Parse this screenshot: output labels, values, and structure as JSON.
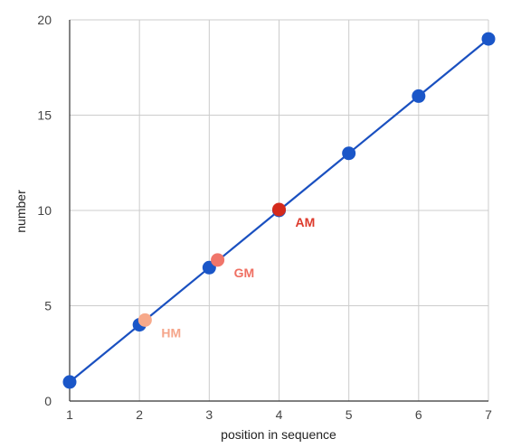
{
  "chart_data": {
    "type": "scatter",
    "xlabel": "position in sequence",
    "ylabel": "number",
    "xlim": [
      1,
      7
    ],
    "ylim": [
      0,
      20
    ],
    "xticks": [
      "1",
      "2",
      "3",
      "4",
      "5",
      "6",
      "7"
    ],
    "yticks": [
      "0",
      "5",
      "10",
      "15",
      "20"
    ],
    "grid": true,
    "series": [
      {
        "color": "#1a56c8",
        "line_color": "#1a50c0",
        "x": [
          1,
          2,
          3,
          4,
          5,
          6,
          7
        ],
        "y": [
          1,
          4,
          7,
          10,
          13,
          16,
          19
        ]
      }
    ],
    "annotations": [
      {
        "label": "HM",
        "x": 2.08,
        "y": 4.25,
        "color": "#f7a98a",
        "label_color": "#f5a58a"
      },
      {
        "label": "GM",
        "x": 3.12,
        "y": 7.4,
        "color": "#f0756a",
        "label_color": "#ef6f62"
      },
      {
        "label": "AM",
        "x": 4.0,
        "y": 10.05,
        "color": "#d42a1c",
        "label_color": "#dd3a2c"
      }
    ]
  }
}
